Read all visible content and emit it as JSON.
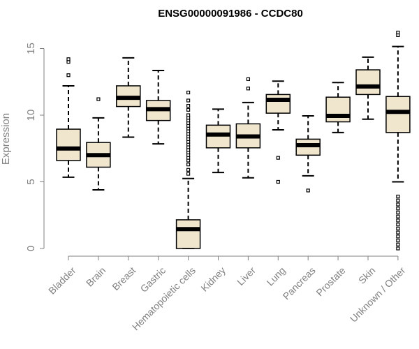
{
  "chart_data": {
    "type": "boxplot",
    "title": "ENSG00000091986 - CCDC80",
    "xlabel": "",
    "ylabel": "Expression",
    "ylim": [
      0,
      16
    ],
    "yticks": [
      0,
      5,
      10,
      15
    ],
    "box_fill": "#efe6cd",
    "categories": [
      "Bladder",
      "Brain",
      "Breast",
      "Gastric",
      "Hematopoietic cells",
      "Kidney",
      "Liver",
      "Lung",
      "Pancreas",
      "Prostate",
      "Skin",
      "Unknown / Other"
    ],
    "boxes": [
      {
        "min": 5.35,
        "q1": 6.6,
        "median": 7.5,
        "q3": 8.95,
        "max": 12.2,
        "outliers": [
          13.0,
          14.0,
          14.2
        ]
      },
      {
        "min": 4.4,
        "q1": 6.1,
        "median": 7.0,
        "q3": 7.95,
        "max": 9.8,
        "outliers": [
          11.2
        ]
      },
      {
        "min": 8.35,
        "q1": 10.65,
        "median": 11.3,
        "q3": 12.2,
        "max": 14.3,
        "outliers": []
      },
      {
        "min": 7.85,
        "q1": 9.6,
        "median": 10.45,
        "q3": 11.1,
        "max": 13.35,
        "outliers": []
      },
      {
        "min": 0.0,
        "q1": 0.0,
        "median": 1.45,
        "q3": 2.15,
        "max": 5.25,
        "outliers": [
          5.6,
          5.9,
          6.3,
          6.6,
          6.8,
          7.0,
          7.2,
          7.4,
          7.6,
          7.8,
          8.0,
          8.2,
          8.4,
          8.6,
          8.8,
          9.0,
          9.2,
          9.4,
          9.6,
          9.8,
          10.0,
          10.4,
          10.7,
          11.1,
          11.7
        ]
      },
      {
        "min": 5.7,
        "q1": 7.55,
        "median": 8.55,
        "q3": 9.25,
        "max": 10.45,
        "outliers": []
      },
      {
        "min": 5.3,
        "q1": 7.55,
        "median": 8.4,
        "q3": 9.35,
        "max": 10.95,
        "outliers": [
          12.0,
          12.7
        ]
      },
      {
        "min": 8.9,
        "q1": 10.15,
        "median": 11.15,
        "q3": 11.55,
        "max": 12.55,
        "outliers": [
          5.0,
          6.8
        ]
      },
      {
        "min": 5.45,
        "q1": 7.0,
        "median": 7.75,
        "q3": 8.2,
        "max": 9.95,
        "outliers": [
          4.35
        ]
      },
      {
        "min": 8.7,
        "q1": 9.5,
        "median": 9.95,
        "q3": 11.35,
        "max": 12.45,
        "outliers": []
      },
      {
        "min": 9.7,
        "q1": 11.55,
        "median": 12.15,
        "q3": 13.4,
        "max": 14.35,
        "outliers": []
      },
      {
        "min": 5.0,
        "q1": 8.7,
        "median": 10.25,
        "q3": 11.4,
        "max": 15.15,
        "outliers": [
          0.0,
          0.3,
          0.6,
          0.9,
          1.2,
          1.5,
          1.8,
          2.1,
          2.4,
          2.7,
          3.0,
          3.3,
          3.6,
          3.9,
          16.0,
          16.2
        ]
      }
    ]
  }
}
